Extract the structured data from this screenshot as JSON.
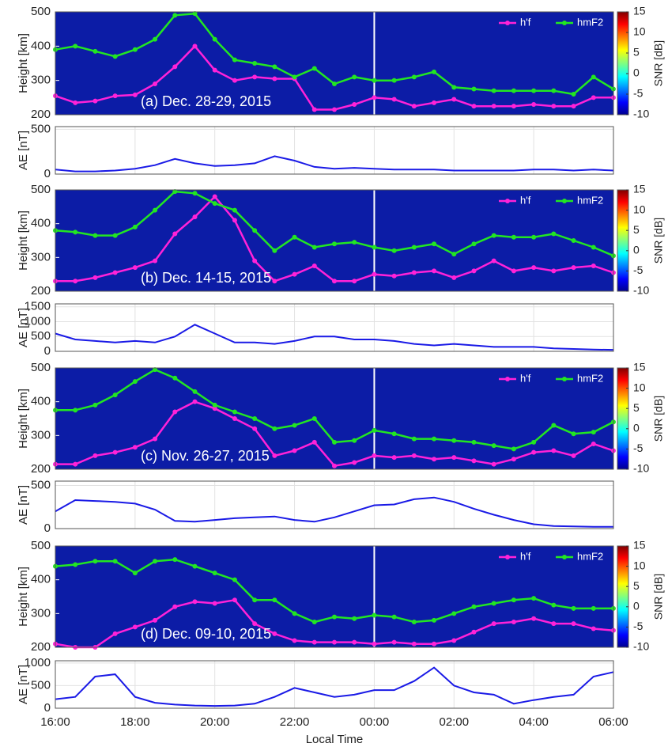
{
  "chart_data": [
    {
      "type": "line",
      "annotation": "(a) Dec. 28-29, 2015",
      "ylabel": "Height [km]",
      "ylim": [
        200,
        500
      ],
      "yticks": [
        200,
        300,
        400,
        500
      ],
      "legend": "upper right",
      "x": [
        16,
        16.5,
        17,
        17.5,
        18,
        18.5,
        19,
        19.5,
        20,
        20.5,
        21,
        21.5,
        22,
        22.5,
        23,
        23.5,
        24,
        24.5,
        25,
        25.5,
        26,
        26.5,
        27,
        27.5,
        28,
        28.5,
        29,
        29.5,
        30
      ],
      "series": [
        {
          "name": "h'f",
          "color": "#ff22d8",
          "values": [
            255,
            235,
            240,
            255,
            258,
            290,
            340,
            400,
            330,
            300,
            310,
            305,
            305,
            215,
            215,
            230,
            250,
            245,
            225,
            235,
            245,
            225,
            225,
            225,
            230,
            225,
            225,
            250,
            250
          ]
        },
        {
          "name": "hmF2",
          "color": "#22e622",
          "values": [
            390,
            400,
            385,
            370,
            390,
            420,
            490,
            495,
            420,
            360,
            350,
            340,
            310,
            335,
            290,
            310,
            300,
            300,
            310,
            325,
            280,
            275,
            270,
            270,
            270,
            270,
            260,
            310,
            275
          ]
        }
      ],
      "colorbar": {
        "label": "SNR [dB]",
        "lim": [
          -10,
          15
        ],
        "ticks": [
          -10,
          -5,
          0,
          5,
          10,
          15
        ],
        "colormap": "jet"
      }
    },
    {
      "type": "line",
      "ylabel": "AE [nT]",
      "ylim": [
        0,
        530
      ],
      "yticks": [
        0,
        500
      ],
      "grid": true,
      "color": "#1a1ae6",
      "x": [
        16,
        16.5,
        17,
        17.5,
        18,
        18.5,
        19,
        19.5,
        20,
        20.5,
        21,
        21.5,
        22,
        22.5,
        23,
        23.5,
        24,
        24.5,
        25,
        25.5,
        26,
        26.5,
        27,
        27.5,
        28,
        28.5,
        29,
        29.5,
        30
      ],
      "values": [
        50,
        30,
        30,
        40,
        60,
        100,
        170,
        120,
        90,
        100,
        120,
        200,
        150,
        80,
        60,
        70,
        60,
        50,
        50,
        50,
        40,
        40,
        40,
        40,
        50,
        50,
        40,
        50,
        40
      ]
    },
    {
      "type": "line",
      "annotation": "(b) Dec. 14-15, 2015",
      "ylabel": "Height [km]",
      "ylim": [
        200,
        500
      ],
      "yticks": [
        200,
        300,
        400,
        500
      ],
      "legend": "upper right",
      "x": [
        16,
        16.5,
        17,
        17.5,
        18,
        18.5,
        19,
        19.5,
        20,
        20.5,
        21,
        21.5,
        22,
        22.5,
        23,
        23.5,
        24,
        24.5,
        25,
        25.5,
        26,
        26.5,
        27,
        27.5,
        28,
        28.5,
        29,
        29.5,
        30
      ],
      "series": [
        {
          "name": "h'f",
          "color": "#ff22d8",
          "values": [
            230,
            230,
            240,
            255,
            270,
            290,
            370,
            420,
            480,
            410,
            290,
            230,
            250,
            275,
            230,
            230,
            250,
            245,
            255,
            260,
            240,
            260,
            290,
            260,
            270,
            260,
            270,
            275,
            255
          ]
        },
        {
          "name": "hmF2",
          "color": "#22e622",
          "values": [
            380,
            375,
            365,
            365,
            390,
            440,
            495,
            490,
            460,
            440,
            380,
            320,
            360,
            330,
            340,
            345,
            330,
            320,
            330,
            340,
            310,
            340,
            365,
            360,
            360,
            370,
            350,
            330,
            305
          ]
        }
      ],
      "colorbar": {
        "label": "SNR [dB]",
        "lim": [
          -10,
          15
        ],
        "ticks": [
          -10,
          -5,
          0,
          5,
          10,
          15
        ],
        "colormap": "jet"
      }
    },
    {
      "type": "line",
      "ylabel": "AE [nT]",
      "ylim": [
        0,
        1600
      ],
      "yticks": [
        0,
        500,
        1000,
        1500
      ],
      "grid": true,
      "color": "#1a1ae6",
      "x": [
        16,
        16.5,
        17,
        17.5,
        18,
        18.5,
        19,
        19.5,
        20,
        20.5,
        21,
        21.5,
        22,
        22.5,
        23,
        23.5,
        24,
        24.5,
        25,
        25.5,
        26,
        26.5,
        27,
        27.5,
        28,
        28.5,
        29,
        29.5,
        30
      ],
      "values": [
        600,
        400,
        350,
        300,
        350,
        300,
        500,
        900,
        600,
        300,
        300,
        250,
        350,
        500,
        500,
        400,
        400,
        350,
        250,
        200,
        250,
        200,
        150,
        150,
        150,
        100,
        80,
        60,
        50
      ]
    },
    {
      "type": "line",
      "annotation": "(c) Nov. 26-27, 2015",
      "ylabel": "Height [km]",
      "ylim": [
        200,
        500
      ],
      "yticks": [
        200,
        300,
        400,
        500
      ],
      "legend": "upper right",
      "x": [
        16,
        16.5,
        17,
        17.5,
        18,
        18.5,
        19,
        19.5,
        20,
        20.5,
        21,
        21.5,
        22,
        22.5,
        23,
        23.5,
        24,
        24.5,
        25,
        25.5,
        26,
        26.5,
        27,
        27.5,
        28,
        28.5,
        29,
        29.5,
        30
      ],
      "series": [
        {
          "name": "h'f",
          "color": "#ff22d8",
          "values": [
            215,
            215,
            240,
            250,
            265,
            290,
            370,
            400,
            380,
            350,
            320,
            240,
            255,
            280,
            210,
            220,
            240,
            235,
            240,
            230,
            235,
            225,
            215,
            230,
            250,
            255,
            240,
            275,
            255
          ]
        },
        {
          "name": "hmF2",
          "color": "#22e622",
          "values": [
            375,
            375,
            390,
            420,
            460,
            495,
            470,
            430,
            390,
            370,
            350,
            320,
            330,
            350,
            280,
            285,
            315,
            305,
            290,
            290,
            285,
            280,
            270,
            260,
            280,
            330,
            305,
            310,
            340
          ]
        }
      ],
      "colorbar": {
        "label": "SNR [dB]",
        "lim": [
          -10,
          15
        ],
        "ticks": [
          -10,
          -5,
          0,
          5,
          10,
          15
        ],
        "colormap": "jet"
      }
    },
    {
      "type": "line",
      "ylabel": "AE [nT]",
      "ylim": [
        0,
        550
      ],
      "yticks": [
        0,
        500
      ],
      "grid": true,
      "color": "#1a1ae6",
      "x": [
        16,
        16.5,
        17,
        17.5,
        18,
        18.5,
        19,
        19.5,
        20,
        20.5,
        21,
        21.5,
        22,
        22.5,
        23,
        23.5,
        24,
        24.5,
        25,
        25.5,
        26,
        26.5,
        27,
        27.5,
        28,
        28.5,
        29,
        29.5,
        30
      ],
      "values": [
        200,
        330,
        320,
        310,
        290,
        220,
        90,
        80,
        100,
        120,
        130,
        140,
        100,
        80,
        130,
        200,
        270,
        280,
        340,
        360,
        310,
        230,
        160,
        100,
        50,
        30,
        25,
        20,
        20
      ]
    },
    {
      "type": "line",
      "annotation": "(d) Dec. 09-10, 2015",
      "ylabel": "Height [km]",
      "ylim": [
        200,
        500
      ],
      "yticks": [
        200,
        300,
        400,
        500
      ],
      "legend": "upper right",
      "x": [
        16,
        16.5,
        17,
        17.5,
        18,
        18.5,
        19,
        19.5,
        20,
        20.5,
        21,
        21.5,
        22,
        22.5,
        23,
        23.5,
        24,
        24.5,
        25,
        25.5,
        26,
        26.5,
        27,
        27.5,
        28,
        28.5,
        29,
        29.5,
        30
      ],
      "series": [
        {
          "name": "h'f",
          "color": "#ff22d8",
          "values": [
            210,
            200,
            200,
            240,
            260,
            280,
            320,
            335,
            330,
            340,
            270,
            240,
            220,
            215,
            215,
            215,
            210,
            215,
            210,
            210,
            220,
            245,
            270,
            275,
            285,
            270,
            270,
            255,
            250
          ]
        },
        {
          "name": "hmF2",
          "color": "#22e622",
          "values": [
            440,
            445,
            455,
            455,
            420,
            455,
            460,
            440,
            420,
            400,
            340,
            340,
            300,
            275,
            290,
            285,
            295,
            290,
            275,
            280,
            300,
            320,
            330,
            340,
            345,
            325,
            315,
            315,
            315
          ]
        }
      ],
      "colorbar": {
        "label": "SNR [dB]",
        "lim": [
          -10,
          15
        ],
        "ticks": [
          -10,
          -5,
          0,
          5,
          10,
          15
        ],
        "colormap": "jet"
      }
    },
    {
      "type": "line",
      "ylabel": "AE [nT]",
      "ylim": [
        0,
        1050
      ],
      "yticks": [
        0,
        500,
        1000
      ],
      "grid": true,
      "color": "#1a1ae6",
      "x": [
        16,
        16.5,
        17,
        17.5,
        18,
        18.5,
        19,
        19.5,
        20,
        20.5,
        21,
        21.5,
        22,
        22.5,
        23,
        23.5,
        24,
        24.5,
        25,
        25.5,
        26,
        26.5,
        27,
        27.5,
        28,
        28.5,
        29,
        29.5,
        30
      ],
      "values": [
        200,
        250,
        700,
        750,
        250,
        120,
        80,
        60,
        50,
        60,
        100,
        250,
        450,
        350,
        250,
        300,
        400,
        400,
        600,
        900,
        500,
        350,
        300,
        100,
        180,
        250,
        300,
        700,
        800
      ],
      "xlabel": "Local Time",
      "xlim": [
        16,
        30
      ],
      "xticks": [
        {
          "value": 16,
          "label": "16:00"
        },
        {
          "value": 18,
          "label": "18:00"
        },
        {
          "value": 20,
          "label": "20:00"
        },
        {
          "value": 22,
          "label": "22:00"
        },
        {
          "value": 24,
          "label": "00:00"
        },
        {
          "value": 26,
          "label": "02:00"
        },
        {
          "value": 28,
          "label": "04:00"
        },
        {
          "value": 30,
          "label": "06:00"
        }
      ]
    }
  ]
}
